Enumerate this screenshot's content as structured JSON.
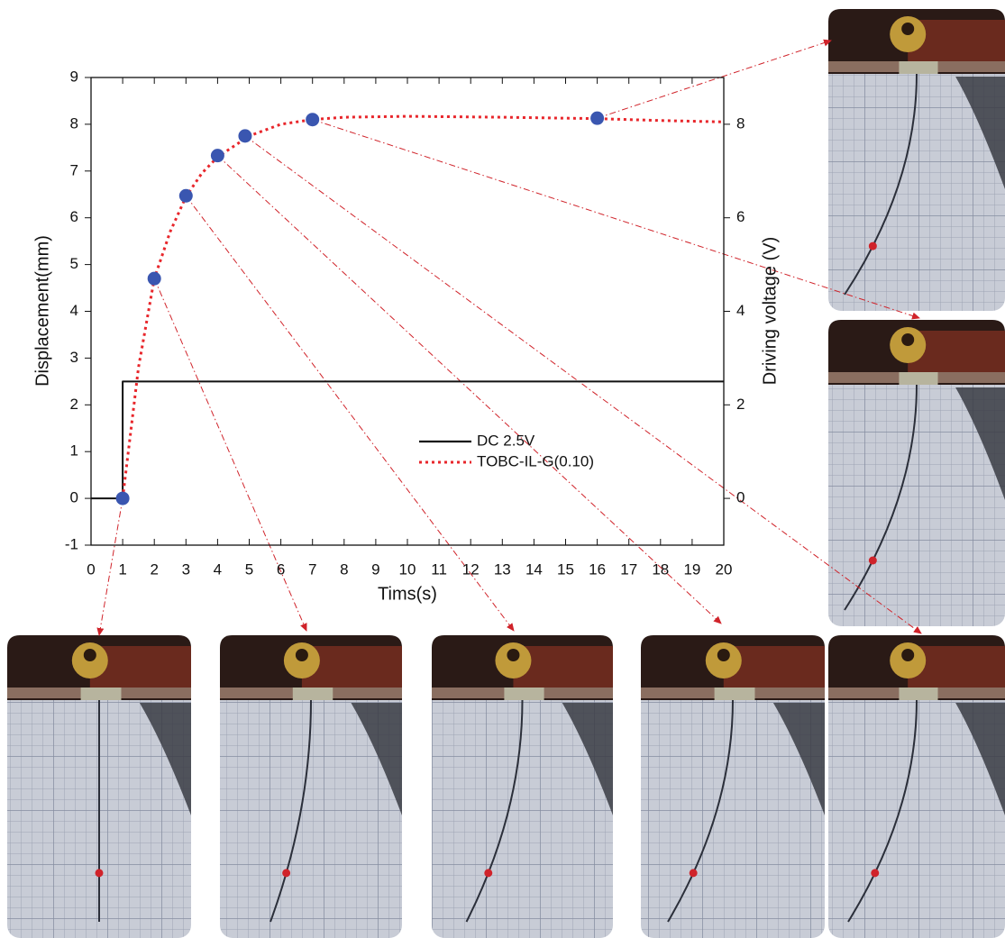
{
  "chart_data": {
    "type": "line",
    "xlabel": "Tims(s)",
    "ylabel": "Displacement(mm)",
    "y2label": "Driving voltage (V)",
    "xlim": [
      0,
      20
    ],
    "xticks": [
      0,
      1,
      2,
      3,
      4,
      5,
      6,
      7,
      8,
      9,
      10,
      11,
      12,
      13,
      14,
      15,
      16,
      17,
      18,
      19,
      20
    ],
    "ylim": [
      -1,
      9
    ],
    "yticks": [
      -1,
      0,
      1,
      2,
      3,
      4,
      5,
      6,
      7,
      8,
      9
    ],
    "y2lim": [
      -1,
      9
    ],
    "y2ticks": [
      0,
      2,
      4,
      6,
      8
    ],
    "grid": true,
    "legend": "center",
    "series": [
      {
        "name": "DC 2.5V",
        "color": "#111111",
        "style": "solid",
        "axis": "y2",
        "x": [
          0,
          1,
          1,
          20
        ],
        "values": [
          0,
          0,
          2.5,
          2.5
        ]
      },
      {
        "name": "TOBC-IL-G(0.10)",
        "color": "#e8262b",
        "style": "dotted",
        "x": [
          1,
          1.5,
          2,
          2.5,
          3,
          3.5,
          4,
          5,
          6,
          7,
          8,
          10,
          13,
          16,
          18,
          20
        ],
        "values": [
          0,
          2.8,
          4.7,
          5.7,
          6.45,
          6.95,
          7.3,
          7.75,
          8.0,
          8.1,
          8.15,
          8.17,
          8.15,
          8.12,
          8.08,
          8.05
        ]
      }
    ],
    "points": {
      "color": "#3a56b0",
      "x": [
        1,
        2,
        3,
        4,
        4.87,
        7,
        16
      ],
      "values": [
        0,
        4.7,
        6.47,
        7.33,
        7.75,
        8.1,
        8.13
      ]
    }
  }
}
